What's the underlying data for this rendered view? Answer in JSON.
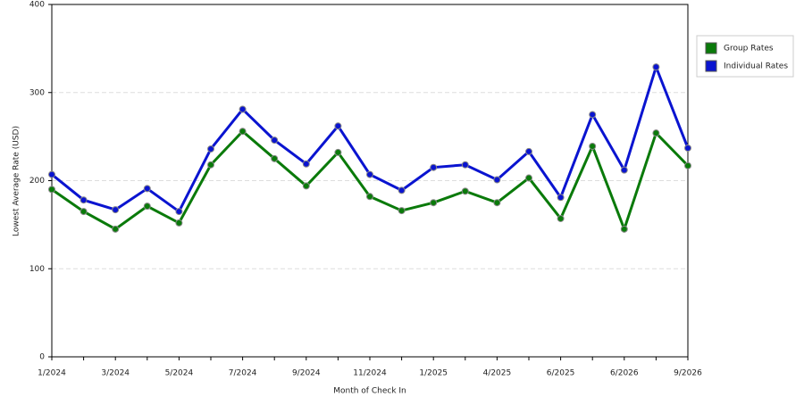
{
  "chart_data": {
    "type": "line",
    "x_label": "Month of Check In",
    "y_label": "Lowest Average Rate (USD)",
    "categories": [
      "1/2024",
      null,
      "3/2024",
      null,
      "5/2024",
      null,
      "7/2024",
      null,
      "9/2024",
      null,
      "11/2024",
      null,
      "1/2025",
      null,
      "4/2025",
      null,
      "6/2025",
      null,
      "6/2026",
      null,
      "9/2026"
    ],
    "series": [
      {
        "name": "Group Rates",
        "color": "#0a7a0a",
        "values": [
          190,
          165,
          145,
          171,
          152,
          218,
          256,
          225,
          194,
          232,
          182,
          166,
          175,
          188,
          175,
          203,
          157,
          239,
          145,
          254,
          217
        ]
      },
      {
        "name": "Individual Rates",
        "color": "#0a14d0",
        "values": [
          207,
          178,
          167,
          191,
          165,
          236,
          281,
          246,
          219,
          262,
          207,
          189,
          215,
          218,
          201,
          233,
          181,
          275,
          212,
          329,
          237
        ]
      }
    ],
    "ylim": [
      0,
      400
    ],
    "yticks": [
      0,
      100,
      200,
      300,
      400
    ],
    "grid": true,
    "legend": "right"
  }
}
